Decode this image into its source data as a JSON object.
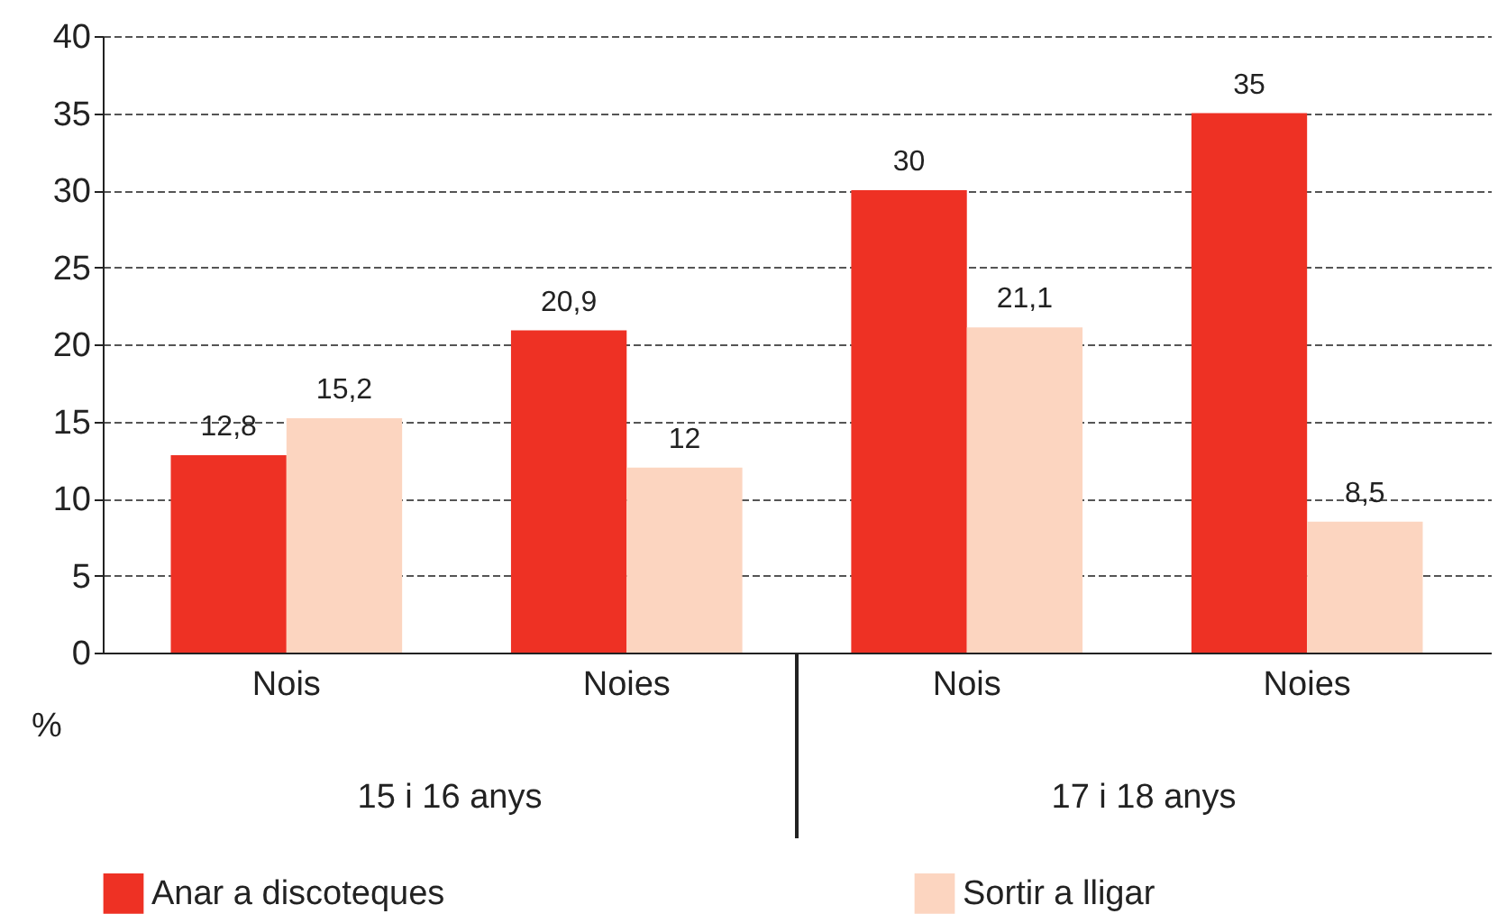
{
  "chart_data": {
    "type": "bar",
    "ylabel": "%",
    "categories": [
      "Nois",
      "Noies",
      "Nois",
      "Noies"
    ],
    "series": [
      {
        "name": "Anar a discoteques",
        "color": "#ee3124",
        "values": [
          12.8,
          20.9,
          30,
          35
        ],
        "value_labels": [
          "12,8",
          "20,9",
          "30",
          "35"
        ]
      },
      {
        "name": "Sortir a lligar",
        "color": "#fcd5c0",
        "values": [
          15.2,
          12,
          21.1,
          8.5
        ],
        "value_labels": [
          "15,2",
          "12",
          "21,1",
          "8,5"
        ]
      }
    ],
    "ylim": [
      0,
      40
    ],
    "yticks": [
      0,
      5,
      10,
      15,
      20,
      25,
      30,
      35,
      40
    ],
    "grid": "y",
    "legend": "bottom",
    "annotations": [
      "15 i 16 anys",
      "17 i 18 anys"
    ]
  }
}
